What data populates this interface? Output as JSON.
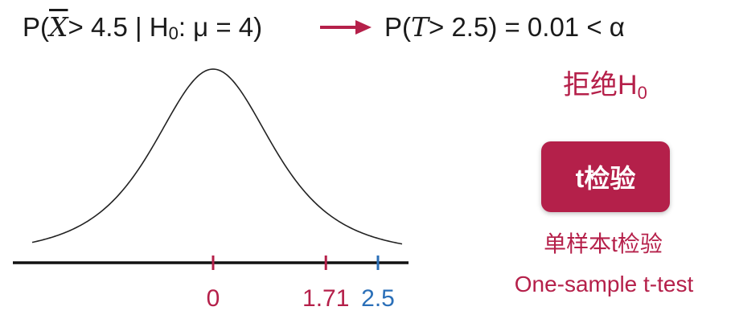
{
  "formula": {
    "left": {
      "prefix": "P(",
      "variable": "X",
      "middle": "> 4.5 | H",
      "h_sub": "0",
      "mu_part": ": μ = 4)"
    },
    "right": {
      "prefix": "P(",
      "variable": "T",
      "suffix": "> 2.5) = 0.01 < α"
    }
  },
  "reject": {
    "label": "拒绝H",
    "sub": "0"
  },
  "test_button": {
    "label": "t检验"
  },
  "caption": {
    "zh": "单样本t检验",
    "en": "One-sample t-test"
  },
  "axis": {
    "ticks": [
      {
        "value": 0,
        "label": "0",
        "color": "#b5204a"
      },
      {
        "value": 1.71,
        "label": "1.71",
        "color": "#b5204a"
      },
      {
        "value": 2.5,
        "label": "2.5",
        "color": "#2a6fb8"
      }
    ]
  },
  "colors": {
    "accent": "#b5204a",
    "blue": "#2a6fb8",
    "text": "#1a1a1a"
  }
}
